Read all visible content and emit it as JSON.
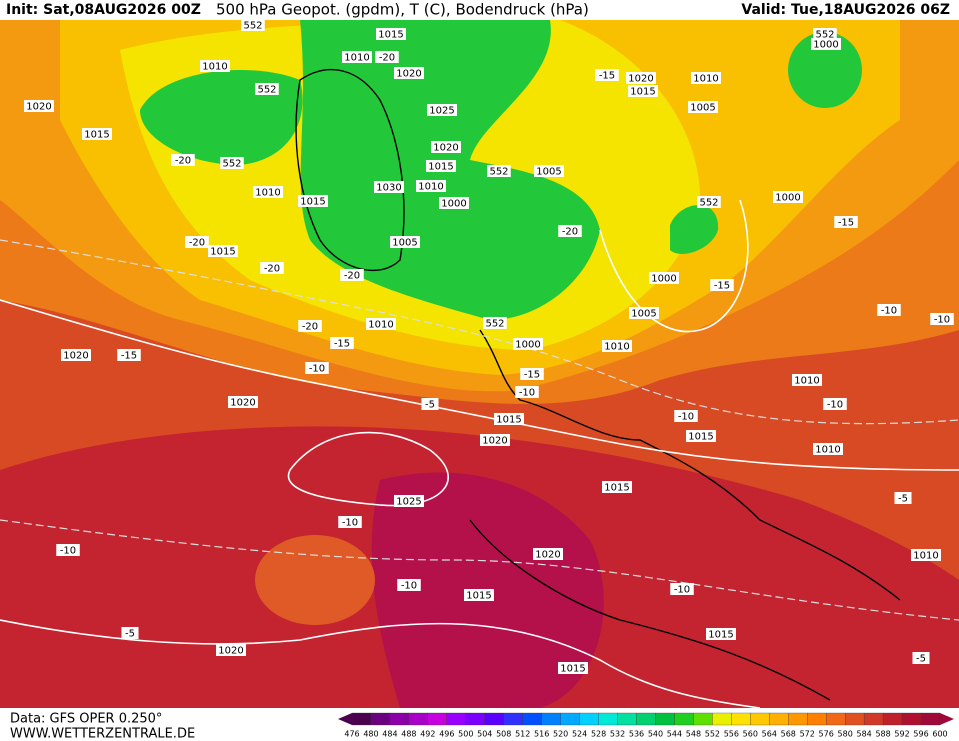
{
  "header": {
    "init": "Init: Sat,08AUG2026 00Z",
    "title": "500 hPa Geopot. (gpdm), T (C), Bodendruck (hPa)",
    "valid": "Valid: Tue,18AUG2026 06Z"
  },
  "map_labels": [
    "552",
    "1015",
    "1010",
    "-20",
    "1010",
    "552",
    "1020",
    "1020",
    "1015",
    "1025",
    "-20",
    "552",
    "1020",
    "1015",
    "1030",
    "1010",
    "552",
    "1005",
    "1010",
    "1015",
    "1000",
    "-20",
    "1005",
    "-20",
    "1015",
    "-20",
    "-20",
    "-15",
    "1020",
    "1015",
    "1010",
    "1005",
    "552",
    "1000",
    "1000",
    "552",
    "-15",
    "1000",
    "-15",
    "-20",
    "1010",
    "552",
    "1005",
    "1000",
    "-15",
    "1010",
    "1020",
    "-15",
    "-10",
    "-15",
    "-10",
    "1010",
    "-10",
    "-5",
    "1020",
    "1015",
    "-10",
    "1015",
    "-10",
    "1020",
    "1010",
    "1025",
    "1015",
    "-5",
    "-10",
    "-10",
    "1020",
    "1010",
    "-10",
    "1015",
    "-10",
    "-5",
    "1015",
    "1020",
    "1015",
    "-5",
    "-10"
  ],
  "colorbar": {
    "ticks": [
      476,
      480,
      484,
      488,
      492,
      496,
      500,
      504,
      508,
      512,
      516,
      520,
      524,
      528,
      532,
      536,
      540,
      544,
      548,
      552,
      556,
      560,
      564,
      568,
      572,
      576,
      580,
      584,
      588,
      592,
      596,
      600
    ],
    "colors": [
      "#4b0050",
      "#6a0080",
      "#8b00a8",
      "#a800c8",
      "#c800e0",
      "#9a00ff",
      "#7a00ff",
      "#5a00ff",
      "#3030ff",
      "#0050ff",
      "#0080ff",
      "#00a8ff",
      "#00d0ff",
      "#00e8d8",
      "#00e0a0",
      "#00d070",
      "#00c040",
      "#20d020",
      "#60e000",
      "#e8f000",
      "#ffe000",
      "#ffc800",
      "#ffb000",
      "#ff9800",
      "#ff8000",
      "#f06818",
      "#e05020",
      "#d03828",
      "#c02028",
      "#b01030",
      "#a00838"
    ]
  },
  "footer": {
    "data": "Data: GFS OPER 0.250°",
    "site": "WWW.WETTERZENTRALE.DE"
  }
}
